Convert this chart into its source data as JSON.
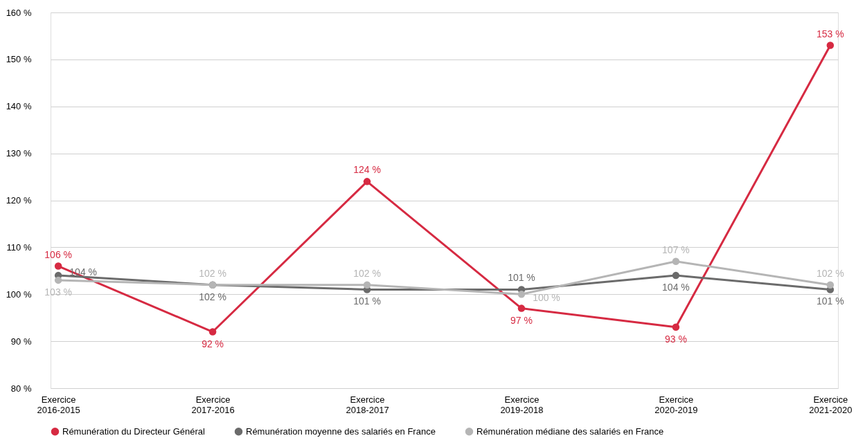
{
  "chart_data": {
    "type": "line",
    "categories": [
      "Exercice\n2016-2015",
      "Exercice\n2017-2016",
      "Exercice\n2018-2017",
      "Exercice\n2019-2018",
      "Exercice\n2020-2019",
      "Exercice\n2021-2020"
    ],
    "series": [
      {
        "name": "Rémunération du Directeur Général",
        "color": "#d62a42",
        "values": [
          106,
          92,
          124,
          97,
          93,
          153
        ],
        "value_labels": [
          "106 %",
          "92 %",
          "124 %",
          "97 %",
          "93 %",
          "153 %"
        ]
      },
      {
        "name": "Rémunération moyenne des salariés en France",
        "color": "#6b6b6b",
        "values": [
          104,
          102,
          101,
          101,
          104,
          101
        ],
        "value_labels": [
          "104 %",
          "102 %",
          "101 %",
          "101 %",
          "104 %",
          "101 %"
        ]
      },
      {
        "name": "Rémunération médiane des salariés en France",
        "color": "#b5b5b5",
        "values": [
          103,
          102,
          102,
          100,
          107,
          102
        ],
        "value_labels": [
          "103 %",
          "102 %",
          "102 %",
          "100 %",
          "107 %",
          "102 %"
        ]
      }
    ],
    "ylim": [
      80,
      160
    ],
    "yticks": [
      {
        "value": 80,
        "label": "80 %"
      },
      {
        "value": 90,
        "label": "90 %"
      },
      {
        "value": 100,
        "label": "100 %"
      },
      {
        "value": 110,
        "label": "110 %"
      },
      {
        "value": 120,
        "label": "120 %"
      },
      {
        "value": 130,
        "label": "130 %"
      },
      {
        "value": 140,
        "label": "140 %"
      },
      {
        "value": 150,
        "label": "150 %"
      },
      {
        "value": 160,
        "label": "160 %"
      }
    ],
    "grid": "y",
    "legend": "bottom",
    "marker": "circle",
    "line_style": "solid"
  }
}
